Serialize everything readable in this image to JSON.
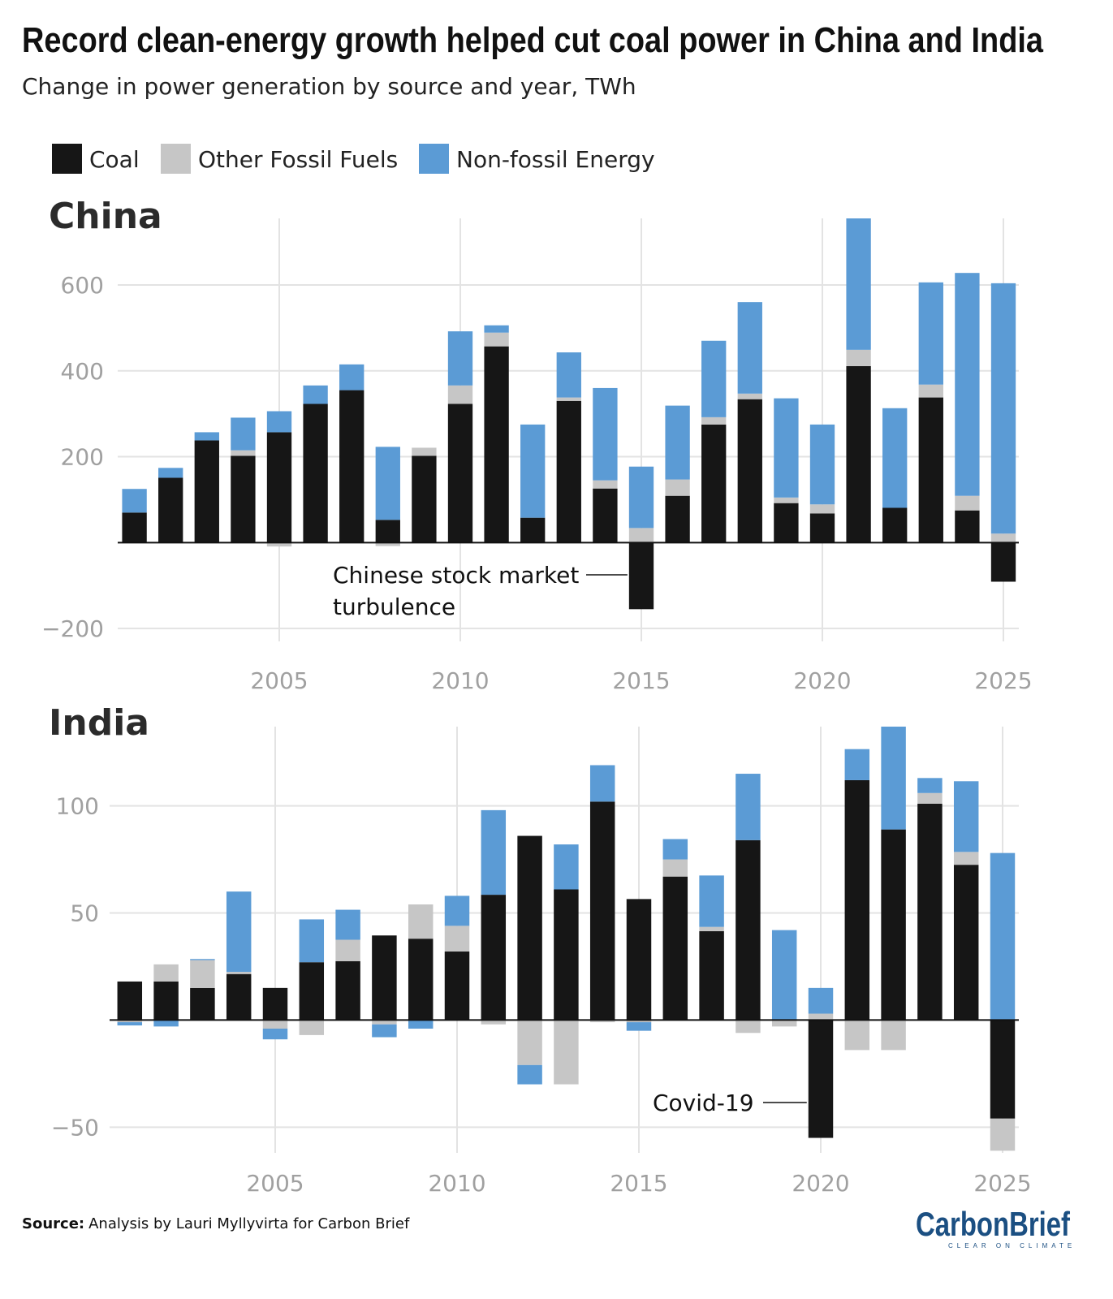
{
  "title": "Record clean-energy growth helped cut coal power in China and India",
  "subtitle": "Change in power generation by source and year, TWh",
  "legend": [
    {
      "label": "Coal",
      "color": "#161616"
    },
    {
      "label": "Other Fossil Fuels",
      "color": "#c6c6c6"
    },
    {
      "label": "Non-fossil Energy",
      "color": "#5b9bd5"
    }
  ],
  "source_label": "Source:",
  "source_text": "Analysis by Lauri Myllyvirta for Carbon Brief",
  "logo": {
    "name": "CarbonBrief",
    "tagline": "CLEAR ON CLIMATE"
  },
  "chart_data": [
    {
      "type": "bar",
      "stacked": true,
      "title": "China",
      "xlabel": "",
      "ylabel": "",
      "categories": [
        2001,
        2002,
        2003,
        2004,
        2005,
        2006,
        2007,
        2008,
        2009,
        2010,
        2011,
        2012,
        2013,
        2014,
        2015,
        2016,
        2017,
        2018,
        2019,
        2020,
        2021,
        2022,
        2023,
        2024,
        2025
      ],
      "x_ticks": [
        2005,
        2010,
        2015,
        2020,
        2025
      ],
      "y_ticks": [
        -200,
        200,
        400,
        600
      ],
      "y_tick_labels": [
        "−200",
        "200",
        "400",
        "600"
      ],
      "ylim": [
        -230,
        755
      ],
      "grid": true,
      "legend_position": "top-left",
      "series": [
        {
          "name": "Coal",
          "values": [
            70,
            151,
            238,
            202,
            257,
            323,
            355,
            53,
            202,
            323,
            457,
            58,
            330,
            126,
            -155,
            109,
            275,
            334,
            92,
            68,
            411,
            81,
            338,
            75,
            -91
          ]
        },
        {
          "name": "Other Fossil Fuels",
          "values": [
            0,
            0,
            0,
            13,
            -9,
            0,
            0,
            -8,
            19,
            43,
            32,
            0,
            8,
            19,
            34,
            38,
            17,
            13,
            13,
            21,
            38,
            0,
            30,
            34,
            21
          ]
        },
        {
          "name": "Non-fossil Energy",
          "values": [
            55,
            23,
            19,
            76,
            49,
            43,
            60,
            170,
            0,
            126,
            17,
            217,
            105,
            215,
            143,
            172,
            178,
            213,
            231,
            186,
            306,
            232,
            238,
            519,
            583
          ]
        }
      ],
      "annotations": [
        {
          "text_lines": [
            "Chinese stock market",
            "turbulence"
          ],
          "x": 2015
        }
      ]
    },
    {
      "type": "bar",
      "stacked": true,
      "title": "India",
      "xlabel": "",
      "ylabel": "",
      "categories": [
        2001,
        2002,
        2003,
        2004,
        2005,
        2006,
        2007,
        2008,
        2009,
        2010,
        2011,
        2012,
        2013,
        2014,
        2015,
        2016,
        2017,
        2018,
        2019,
        2020,
        2021,
        2022,
        2023,
        2024,
        2025
      ],
      "x_ticks": [
        2005,
        2010,
        2015,
        2020,
        2025
      ],
      "y_ticks": [
        -50,
        50,
        100
      ],
      "y_tick_labels": [
        "−50",
        "50",
        "100"
      ],
      "ylim": [
        -62,
        137
      ],
      "grid": true,
      "series": [
        {
          "name": "Coal",
          "values": [
            18,
            18,
            15,
            21.5,
            15,
            27,
            27.5,
            39.5,
            38,
            32,
            58.5,
            86,
            61,
            102,
            56.5,
            67,
            41.5,
            84,
            0,
            -55,
            112,
            89,
            101,
            72.5,
            -46
          ]
        },
        {
          "name": "Other Fossil Fuels",
          "values": [
            -1,
            8,
            13,
            1,
            -4,
            -7,
            10,
            -2,
            16,
            12,
            -2,
            -21,
            -30,
            -1,
            -1,
            8,
            2,
            -6,
            -3,
            3,
            -14,
            -14,
            5,
            6,
            -15
          ]
        },
        {
          "name": "Non-fossil Energy",
          "values": [
            -1.5,
            -3,
            0.5,
            37.5,
            -5,
            20,
            14,
            -6,
            -4,
            14,
            39.5,
            -9,
            21,
            17,
            -4,
            9.5,
            24,
            31,
            42,
            12,
            14.5,
            48,
            7,
            33,
            78
          ]
        }
      ],
      "annotations": [
        {
          "text_lines": [
            "Covid-19"
          ],
          "x": 2020
        }
      ]
    }
  ]
}
